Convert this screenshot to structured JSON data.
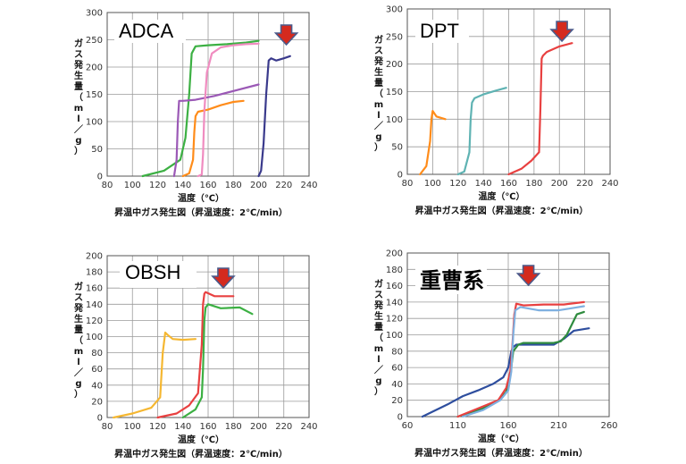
{
  "chart_data": [
    {
      "type": "line",
      "title": "ADCA",
      "xlabel": "温度（℃）",
      "ylabel": "ガス発生量（ml／g）",
      "caption": "昇温中ガス発生図（昇温速度：2℃/min）",
      "xlim": [
        80,
        240
      ],
      "ylim": [
        0,
        300
      ],
      "xticks": [
        80,
        100,
        120,
        140,
        160,
        180,
        200,
        220,
        240
      ],
      "yticks": [
        0,
        50,
        100,
        150,
        200,
        250,
        300
      ],
      "arrow_x": 222,
      "series": [
        {
          "color": "#3cb043",
          "x": [
            108,
            125,
            138,
            142,
            145,
            147,
            150,
            160,
            175,
            190,
            200
          ],
          "y": [
            0,
            10,
            30,
            70,
            150,
            225,
            238,
            240,
            242,
            245,
            248
          ]
        },
        {
          "color": "#9b59b6",
          "x": [
            133,
            135,
            136,
            137,
            140,
            150,
            165,
            180,
            200
          ],
          "y": [
            0,
            30,
            100,
            138,
            138,
            140,
            147,
            156,
            168
          ]
        },
        {
          "color": "#ff8c1a",
          "x": [
            140,
            145,
            148,
            149,
            150,
            152,
            160,
            170,
            180,
            188
          ],
          "y": [
            0,
            5,
            30,
            80,
            110,
            118,
            122,
            130,
            136,
            138
          ]
        },
        {
          "color": "#f08cc0",
          "x": [
            152,
            155,
            156,
            157,
            159,
            163,
            170,
            180,
            190,
            200
          ],
          "y": [
            0,
            3,
            40,
            120,
            190,
            225,
            236,
            240,
            242,
            243
          ]
        },
        {
          "color": "#3a3a8c",
          "x": [
            200,
            202,
            204,
            206,
            208,
            210,
            214,
            220,
            225
          ],
          "y": [
            0,
            10,
            60,
            150,
            212,
            216,
            212,
            216,
            220
          ]
        }
      ]
    },
    {
      "type": "line",
      "title": "DPT",
      "xlabel": "温度（℃）",
      "ylabel": "ガス発生量（ml／g）",
      "caption": "昇温中ガス発生図（昇温速度：2℃/min）",
      "xlim": [
        80,
        240
      ],
      "ylim": [
        0,
        300
      ],
      "xticks": [
        80,
        100,
        120,
        140,
        160,
        180,
        200,
        220,
        240
      ],
      "yticks": [
        0,
        50,
        100,
        150,
        200,
        250,
        300
      ],
      "arrow_x": 202,
      "series": [
        {
          "color": "#ff8c1a",
          "x": [
            90,
            95,
            98,
            99,
            100,
            103,
            110
          ],
          "y": [
            0,
            15,
            60,
            100,
            115,
            105,
            100
          ]
        },
        {
          "color": "#5fb3b3",
          "x": [
            120,
            125,
            129,
            130,
            131,
            133,
            140,
            150,
            158
          ],
          "y": [
            0,
            5,
            40,
            100,
            130,
            138,
            145,
            152,
            157
          ]
        },
        {
          "color": "#e84040",
          "x": [
            160,
            170,
            178,
            184,
            185,
            186,
            187,
            190,
            200,
            210
          ],
          "y": [
            0,
            10,
            25,
            40,
            120,
            210,
            215,
            222,
            232,
            238
          ]
        }
      ]
    },
    {
      "type": "line",
      "title": "OBSH",
      "xlabel": "温度（℃）",
      "ylabel": "ガス発生量（ml／g）",
      "caption": "昇温中ガス発生図（昇温速度：2℃/min）",
      "xlim": [
        80,
        240
      ],
      "ylim": [
        0,
        200
      ],
      "xticks": [
        80,
        100,
        120,
        140,
        160,
        180,
        200,
        220,
        240
      ],
      "yticks": [
        0,
        20,
        40,
        60,
        80,
        100,
        120,
        140,
        160,
        180,
        200
      ],
      "arrow_x": 172,
      "series": [
        {
          "color": "#f5b731",
          "x": [
            85,
            100,
            115,
            122,
            124,
            126,
            128,
            132,
            140,
            150
          ],
          "y": [
            0,
            5,
            12,
            25,
            80,
            105,
            102,
            97,
            96,
            97
          ]
        },
        {
          "color": "#e84040",
          "x": [
            120,
            135,
            145,
            152,
            155,
            156,
            157,
            158,
            165,
            180
          ],
          "y": [
            0,
            5,
            15,
            30,
            90,
            140,
            153,
            155,
            150,
            150
          ]
        },
        {
          "color": "#3cb043",
          "x": [
            140,
            150,
            155,
            156,
            157,
            158,
            160,
            170,
            185,
            195
          ],
          "y": [
            0,
            10,
            25,
            60,
            120,
            136,
            140,
            135,
            136,
            128
          ]
        }
      ]
    },
    {
      "type": "line",
      "title": "重曹系",
      "xlabel": "温度（℃）",
      "ylabel": "ガス発生量（ml／g）",
      "caption": "昇温中ガス発生図（昇温速度：2℃/min）",
      "xlim": [
        60,
        260
      ],
      "ylim": [
        0,
        200
      ],
      "xticks": [
        60,
        110,
        160,
        210,
        260
      ],
      "yticks": [
        0,
        20,
        40,
        60,
        80,
        100,
        120,
        140,
        160,
        180,
        200
      ],
      "arrow_x": 180,
      "series": [
        {
          "color": "#2e4e9e",
          "x": [
            75,
            100,
            115,
            130,
            145,
            155,
            160,
            163,
            165,
            168,
            175,
            190,
            205,
            215,
            225,
            240
          ],
          "y": [
            0,
            15,
            25,
            32,
            40,
            48,
            60,
            80,
            85,
            88,
            88,
            88,
            88,
            95,
            105,
            108
          ]
        },
        {
          "color": "#2e8b3e",
          "x": [
            110,
            135,
            150,
            158,
            162,
            165,
            170,
            175,
            190,
            205,
            212,
            218,
            228,
            235
          ],
          "y": [
            0,
            10,
            20,
            30,
            50,
            80,
            88,
            90,
            90,
            90,
            92,
            100,
            125,
            128
          ]
        },
        {
          "color": "#e84040",
          "x": [
            110,
            130,
            150,
            158,
            162,
            164,
            166,
            168,
            175,
            195,
            215,
            235
          ],
          "y": [
            0,
            10,
            20,
            35,
            55,
            85,
            125,
            138,
            136,
            137,
            137,
            140
          ]
        },
        {
          "color": "#7fb0e0",
          "x": [
            115,
            135,
            152,
            160,
            163,
            165,
            167,
            172,
            190,
            210,
            235
          ],
          "y": [
            0,
            8,
            20,
            32,
            55,
            100,
            130,
            134,
            130,
            130,
            135
          ]
        }
      ]
    }
  ]
}
